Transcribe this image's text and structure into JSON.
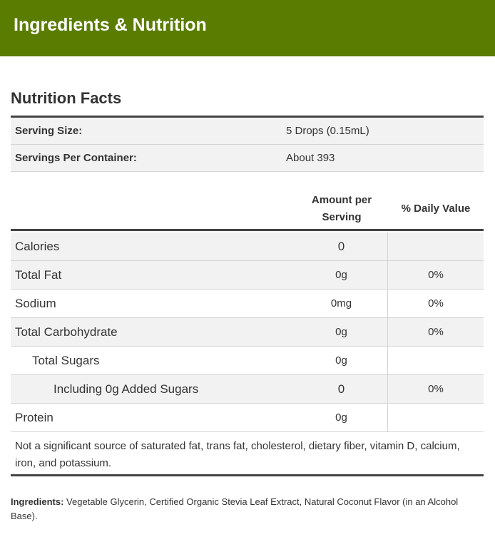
{
  "header": {
    "title": "Ingredients & Nutrition"
  },
  "nutrition": {
    "title": "Nutrition Facts",
    "serving": [
      {
        "label": "Serving Size:",
        "value": "5 Drops (0.15mL)"
      },
      {
        "label": "Servings Per Container:",
        "value": "About 393"
      }
    ],
    "columns": {
      "amount": "Amount per Serving",
      "daily": "% Daily Value"
    },
    "rows": [
      {
        "name": "Calories",
        "amount": "0",
        "daily": ""
      },
      {
        "name": "Total Fat",
        "amount": "0g",
        "daily": "0%"
      },
      {
        "name": "Sodium",
        "amount": "0mg",
        "daily": "0%"
      },
      {
        "name": "Total Carbohydrate",
        "amount": "0g",
        "daily": "0%"
      },
      {
        "name": "Total Sugars",
        "amount": "0g",
        "daily": ""
      },
      {
        "name": "Including 0g Added Sugars",
        "amount": "0",
        "daily": "0%"
      },
      {
        "name": "Protein",
        "amount": "0g",
        "daily": ""
      }
    ],
    "footnote": "Not a significant source of saturated fat, trans fat, cholesterol, dietary fiber, vitamin D, calcium, iron, and potassium."
  },
  "ingredients": {
    "label": "Ingredients:",
    "text": "Vegetable Glycerin, Certified Organic Stevia Leaf Extract, Natural Coconut Flavor (in an Alcohol Base)."
  },
  "colors": {
    "header_bg": "#5a7c00",
    "row_alt": "#f2f2f2",
    "rule": "#444444"
  }
}
